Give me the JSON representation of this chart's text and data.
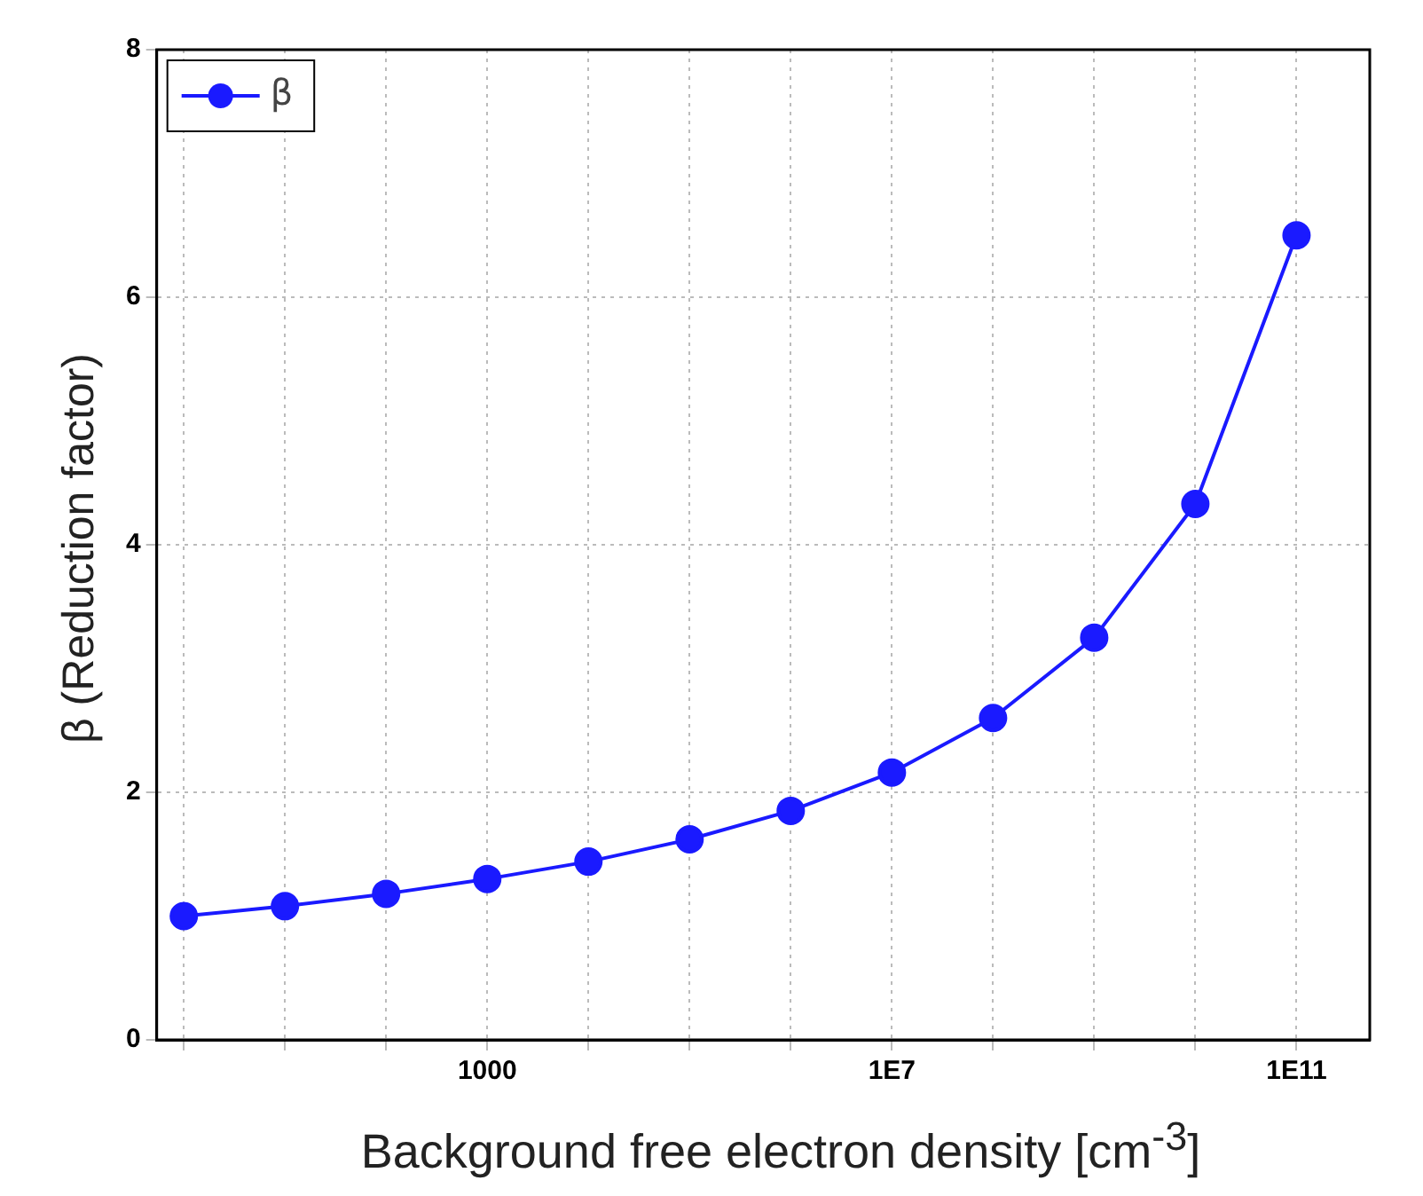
{
  "chart_data": {
    "type": "line",
    "xlabel": "Background free electron density [cm$^{-3}$]",
    "ylabel": "β (Reduction factor)",
    "x": [
      1,
      10,
      100,
      1000,
      10000,
      100000,
      1000000,
      10000000,
      100000000,
      1000000000,
      10000000000,
      100000000000
    ],
    "series": [
      {
        "name": "β",
        "color": "#1a1aff",
        "values": [
          1.0,
          1.08,
          1.18,
          1.3,
          1.44,
          1.62,
          1.85,
          2.16,
          2.6,
          3.25,
          4.33,
          6.5
        ]
      }
    ],
    "log": "x",
    "xlim": [
      0.54,
      530000000000.0
    ],
    "xticks": [
      {
        "value": 1,
        "label": null
      },
      {
        "value": 10,
        "label": null
      },
      {
        "value": 100,
        "label": null
      },
      1000,
      {
        "value": 10000,
        "label": null
      },
      {
        "value": 100000,
        "label": null
      },
      {
        "value": 1000000,
        "label": null
      },
      {
        "value": 10000000,
        "label": "1E7"
      },
      {
        "value": 100000000,
        "label": null
      },
      {
        "value": 1000000000,
        "label": null
      },
      {
        "value": 10000000000,
        "label": null
      },
      {
        "value": 100000000000,
        "label": "1E11"
      }
    ],
    "ylim": [
      0,
      8
    ],
    "yticks": [
      0,
      2,
      4,
      6,
      8
    ],
    "grid": true,
    "legend": "top left",
    "marker": "circle",
    "line_style": "solid"
  }
}
